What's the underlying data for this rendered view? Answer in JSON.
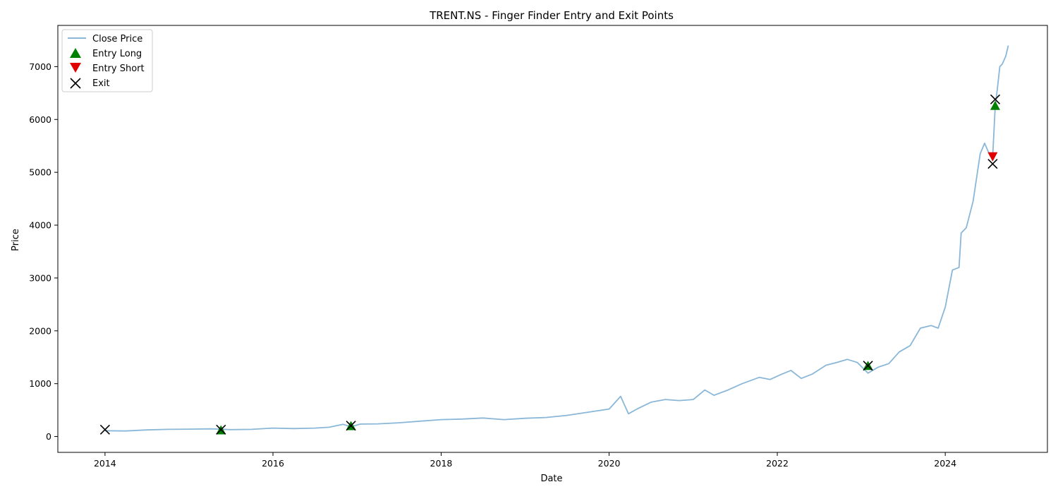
{
  "chart_data": {
    "type": "line",
    "title": "TRENT.NS - Finger Finder Entry and Exit Points",
    "xlabel": "Date",
    "ylabel": "Price",
    "xlim": [
      "2013-06-10",
      "2025-03-20"
    ],
    "ylim": [
      -300,
      7780
    ],
    "x_ticks": [
      "2014",
      "2016",
      "2018",
      "2020",
      "2022",
      "2024"
    ],
    "y_ticks": [
      0,
      1000,
      2000,
      3000,
      4000,
      5000,
      6000,
      7000
    ],
    "grid": false,
    "legend_position": "top-left",
    "colors": {
      "close": "#8ab7d8",
      "entry_long": "#008000",
      "entry_short": "#e00000",
      "exit": "#000000"
    },
    "series": [
      {
        "name": "Close Price",
        "kind": "line",
        "x": [
          "2014-01-01",
          "2014-04-01",
          "2014-07-01",
          "2014-10-01",
          "2015-01-01",
          "2015-04-01",
          "2015-05-20",
          "2015-07-01",
          "2015-10-01",
          "2016-01-01",
          "2016-04-01",
          "2016-07-01",
          "2016-09-01",
          "2016-11-01",
          "2016-12-05",
          "2017-01-15",
          "2017-04-01",
          "2017-07-01",
          "2017-10-01",
          "2018-01-01",
          "2018-04-01",
          "2018-07-01",
          "2018-10-01",
          "2019-01-01",
          "2019-04-01",
          "2019-07-01",
          "2019-10-01",
          "2020-01-01",
          "2020-02-20",
          "2020-03-25",
          "2020-05-01",
          "2020-07-01",
          "2020-09-01",
          "2020-11-01",
          "2021-01-01",
          "2021-02-20",
          "2021-04-01",
          "2021-06-01",
          "2021-08-01",
          "2021-10-15",
          "2021-12-01",
          "2022-01-15",
          "2022-03-01",
          "2022-04-15",
          "2022-06-01",
          "2022-08-01",
          "2022-09-15",
          "2022-11-01",
          "2022-12-15",
          "2023-01-30",
          "2023-03-15",
          "2023-05-01",
          "2023-06-15",
          "2023-08-01",
          "2023-09-15",
          "2023-11-01",
          "2023-12-01",
          "2024-01-01",
          "2024-02-01",
          "2024-03-01",
          "2024-03-10",
          "2024-04-01",
          "2024-05-01",
          "2024-06-01",
          "2024-06-20",
          "2024-07-15",
          "2024-07-25",
          "2024-08-05",
          "2024-08-15",
          "2024-08-25",
          "2024-09-05",
          "2024-09-20",
          "2024-10-01"
        ],
        "values": [
          110,
          105,
          125,
          135,
          140,
          145,
          140,
          130,
          135,
          160,
          150,
          160,
          175,
          230,
          185,
          235,
          240,
          260,
          290,
          320,
          330,
          350,
          320,
          345,
          360,
          400,
          460,
          520,
          760,
          430,
          520,
          650,
          700,
          680,
          700,
          880,
          780,
          880,
          1000,
          1120,
          1080,
          1170,
          1250,
          1100,
          1180,
          1350,
          1400,
          1460,
          1400,
          1200,
          1310,
          1380,
          1600,
          1720,
          2050,
          2100,
          2050,
          2450,
          3150,
          3200,
          3850,
          3950,
          4450,
          5350,
          5550,
          5300,
          5300,
          6250,
          6600,
          7000,
          7050,
          7200,
          7400
        ]
      },
      {
        "name": "Entry Long",
        "kind": "marker-up",
        "x": [
          "2015-05-20",
          "2016-12-05",
          "2023-01-30",
          "2024-08-05"
        ],
        "values": [
          120,
          200,
          1340,
          6260
        ]
      },
      {
        "name": "Entry Short",
        "kind": "marker-down",
        "x": [
          "2024-07-25"
        ],
        "values": [
          5300
        ]
      },
      {
        "name": "Exit",
        "kind": "marker-x",
        "x": [
          "2014-01-01",
          "2015-05-20",
          "2016-12-05",
          "2023-01-30",
          "2024-07-25",
          "2024-08-05"
        ],
        "values": [
          130,
          130,
          205,
          1340,
          5160,
          6380
        ]
      }
    ]
  }
}
